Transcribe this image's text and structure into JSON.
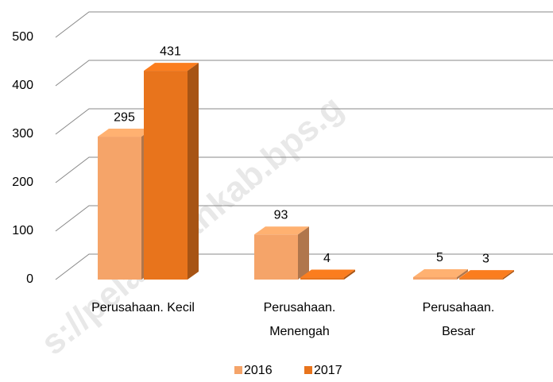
{
  "chart_data": {
    "type": "bar3d",
    "categories": [
      [
        "Perusahaan. Kecil"
      ],
      [
        "Perusahaan.",
        "Menengah"
      ],
      [
        "Perusahaan.",
        "Besar"
      ]
    ],
    "series": [
      {
        "name": "2016",
        "color": "#f5a469",
        "values": [
          295,
          93,
          5
        ]
      },
      {
        "name": "2017",
        "color": "#e8741c",
        "values": [
          431,
          4,
          3
        ]
      }
    ],
    "ylim": [
      0,
      500
    ],
    "yticks": [
      0,
      100,
      200,
      300,
      400,
      500
    ],
    "grid": true,
    "legend": "bottom",
    "watermark": "s://pelalawankab.bps.g"
  }
}
